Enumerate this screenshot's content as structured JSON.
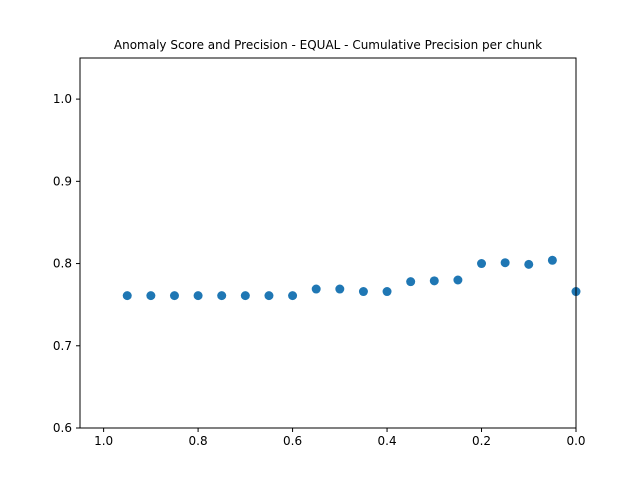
{
  "chart_data": {
    "type": "scatter",
    "title": "Anomaly Score and Precision - EQUAL - Cumulative Precision per chunk",
    "xlabel": "",
    "ylabel": "",
    "xlim": [
      1.05,
      0.0
    ],
    "ylim": [
      0.6,
      1.05
    ],
    "x_inverted": true,
    "grid": false,
    "xticks": [
      1.0,
      0.8,
      0.6,
      0.4,
      0.2,
      0.0
    ],
    "xtick_labels": [
      "1.0",
      "0.8",
      "0.6",
      "0.4",
      "0.2",
      "0.0"
    ],
    "yticks": [
      0.6,
      0.7,
      0.8,
      0.9,
      1.0
    ],
    "ytick_labels": [
      "0.6",
      "0.7",
      "0.8",
      "0.9",
      "1.0"
    ],
    "marker_color": "#1f77b4",
    "series": [
      {
        "x": [
          0.95,
          0.9,
          0.85,
          0.8,
          0.75,
          0.7,
          0.65,
          0.6,
          0.55,
          0.5,
          0.45,
          0.4,
          0.35,
          0.3,
          0.25,
          0.2,
          0.15,
          0.1,
          0.05,
          0.0
        ],
        "y": [
          0.761,
          0.761,
          0.761,
          0.761,
          0.761,
          0.761,
          0.761,
          0.761,
          0.769,
          0.769,
          0.766,
          0.766,
          0.778,
          0.779,
          0.78,
          0.8,
          0.801,
          0.799,
          0.804,
          0.766
        ]
      }
    ]
  }
}
